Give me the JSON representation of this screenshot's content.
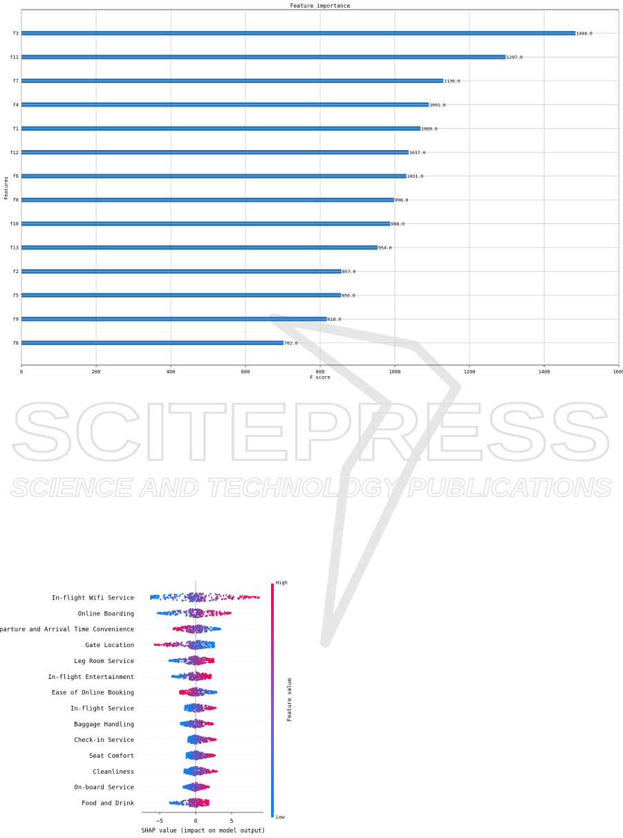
{
  "watermark": {
    "title": "SCITEPRESS",
    "subtitle": "SCIENCE AND TECHNOLOGY PUBLICATIONS",
    "color": "#d9d9d9"
  },
  "chart_data": [
    {
      "type": "bar",
      "orientation": "horizontal",
      "title": "Feature importance",
      "xlabel": "F score",
      "ylabel": "Features",
      "xlim": [
        0,
        1600
      ],
      "xticks": [
        0,
        200,
        400,
        600,
        800,
        1000,
        1200,
        1400,
        1600
      ],
      "grid": true,
      "bar_color": "#2873b8",
      "categories": [
        "f3",
        "f11",
        "f7",
        "f4",
        "f1",
        "f12",
        "f6",
        "f0",
        "f10",
        "f13",
        "f2",
        "f5",
        "f9",
        "f8"
      ],
      "values": [
        1484.0,
        1297.0,
        1130.0,
        1091.0,
        1069.0,
        1037.0,
        1031.0,
        998.0,
        988.0,
        954.0,
        857.0,
        856.0,
        818.0,
        702.0
      ],
      "value_labels": [
        "1484.0",
        "1297.0",
        "1130.0",
        "1091.0",
        "1069.0",
        "1037.0",
        "1031.0",
        "998.0",
        "988.0",
        "954.0",
        "857.0",
        "856.0",
        "818.0",
        "702.0"
      ]
    },
    {
      "type": "scatter",
      "subtype": "shap-beeswarm",
      "xlabel": "SHAP value (impact on model output)",
      "xticks": [
        "−5",
        "0",
        "5"
      ],
      "xtick_values": [
        -5,
        0,
        5
      ],
      "xlim": [
        -7.5,
        9.5
      ],
      "colorbar": {
        "label": "Feature value",
        "high": "High",
        "low": "Low",
        "low_color": "#008bfb",
        "high_color": "#ff0052"
      },
      "features": [
        {
          "name": "In-flight Wifi Service",
          "min": -6.3,
          "max": 8.8,
          "low_side": "left"
        },
        {
          "name": "Online Boarding",
          "min": -5.3,
          "max": 4.9,
          "low_side": "left"
        },
        {
          "name": "Departure and Arrival Time Convenience",
          "min": -3.1,
          "max": 3.4,
          "low_side": "right"
        },
        {
          "name": "Gate Location",
          "min": -5.7,
          "max": 2.6,
          "low_side": "right"
        },
        {
          "name": "Leg Room Service",
          "min": -3.7,
          "max": 2.5,
          "low_side": "left"
        },
        {
          "name": "In-flight Entertainment",
          "min": -3.3,
          "max": 2.1,
          "low_side": "left"
        },
        {
          "name": "Ease of Online Booking",
          "min": -2.2,
          "max": 2.9,
          "low_side": "right"
        },
        {
          "name": "In-flight Service",
          "min": -1.5,
          "max": 2.8,
          "low_side": "left"
        },
        {
          "name": "Baggage Handling",
          "min": -2.1,
          "max": 2.4,
          "low_side": "left"
        },
        {
          "name": "Check-in Service",
          "min": -1.1,
          "max": 2.8,
          "low_side": "left"
        },
        {
          "name": "Seat Comfort",
          "min": -1.3,
          "max": 2.7,
          "low_side": "left"
        },
        {
          "name": "Cleanliness",
          "min": -1.6,
          "max": 2.9,
          "low_side": "left"
        },
        {
          "name": "On-board Service",
          "min": -1.7,
          "max": 1.8,
          "low_side": "left"
        },
        {
          "name": "Food and Drink",
          "min": -3.6,
          "max": 1.8,
          "low_side": "left"
        }
      ]
    }
  ]
}
